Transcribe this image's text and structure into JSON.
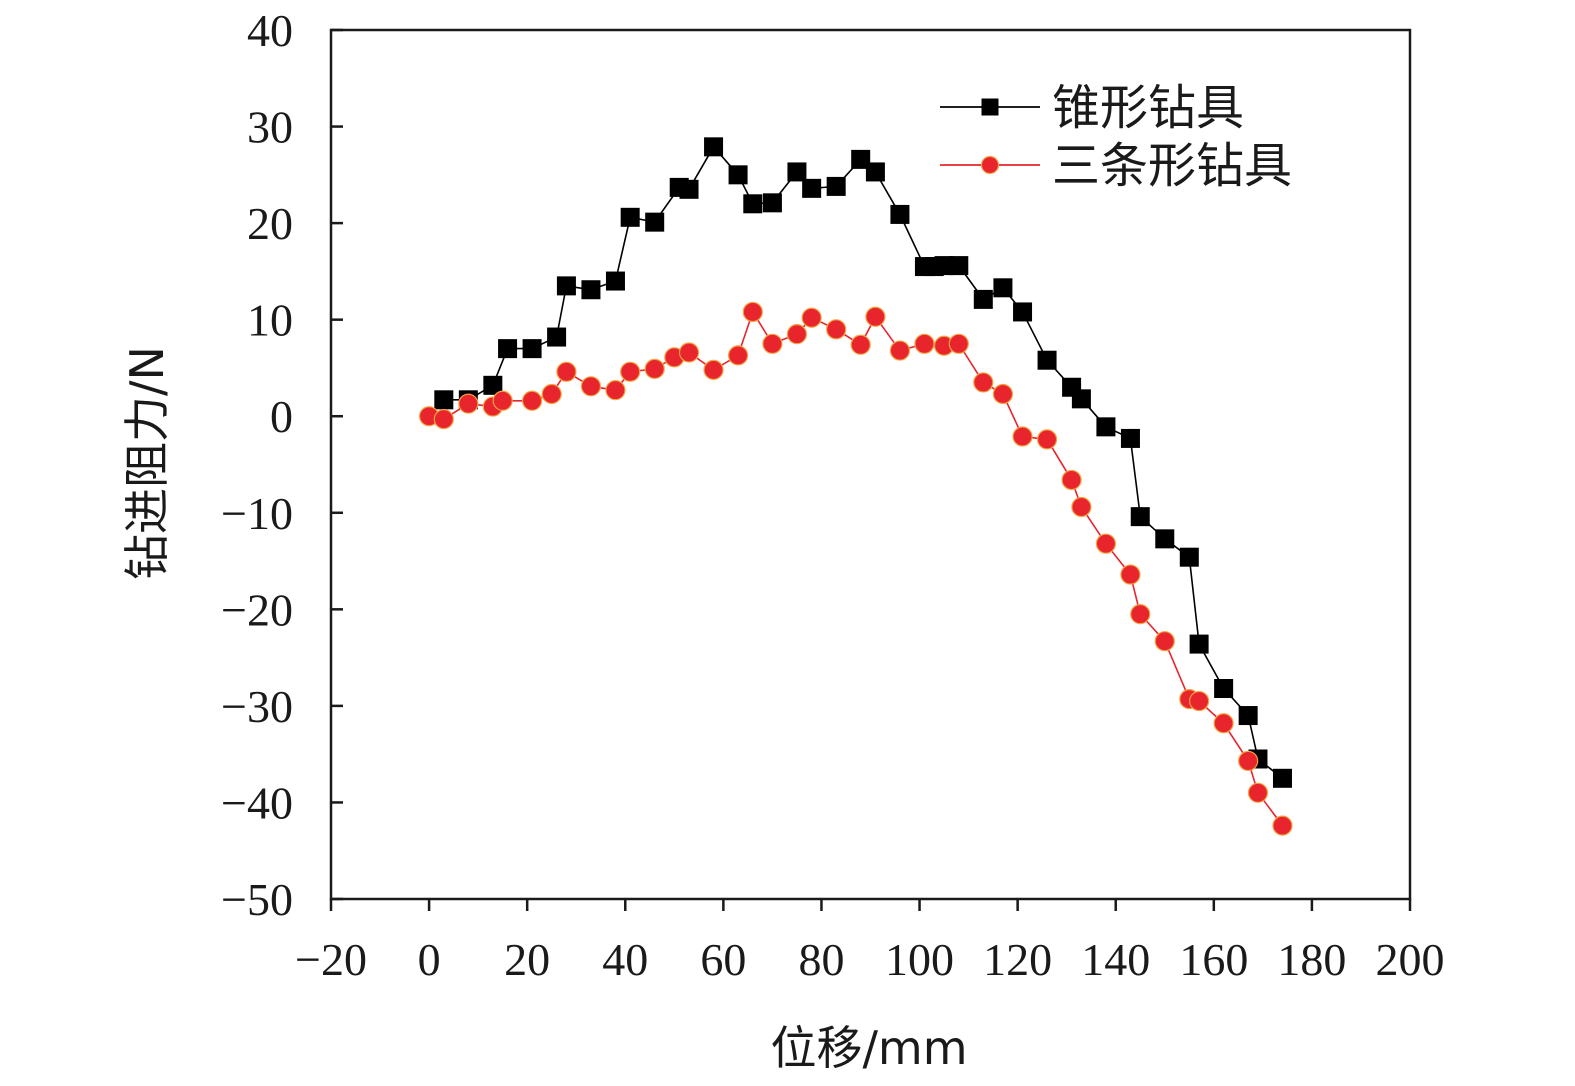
{
  "chart_data": {
    "type": "line",
    "title": "",
    "xlabel": "位移/mm",
    "ylabel": "钻进阻力/N",
    "xlim": [
      -20,
      200
    ],
    "ylim": [
      -50,
      40
    ],
    "xticks": [
      -20,
      0,
      20,
      40,
      60,
      80,
      100,
      120,
      140,
      160,
      180,
      200
    ],
    "yticks": [
      -50,
      -40,
      -30,
      -20,
      -10,
      0,
      10,
      20,
      30,
      40
    ],
    "xtick_labels": [
      "−20",
      "0",
      "20",
      "40",
      "60",
      "80",
      "100",
      "120",
      "140",
      "160",
      "180",
      "200"
    ],
    "ytick_labels": [
      "−50",
      "−40",
      "−30",
      "−20",
      "−10",
      "0",
      "10",
      "20",
      "30",
      "40"
    ],
    "grid": false,
    "legend_position": "top-right",
    "series": [
      {
        "name": "锥形钻具",
        "color": "#000000",
        "marker": "square",
        "x": [
          3,
          8,
          13,
          16,
          21,
          26,
          28,
          33,
          38,
          41,
          46,
          51,
          53,
          58,
          63,
          66,
          70,
          75,
          78,
          83,
          88,
          91,
          96,
          101,
          103,
          105,
          108,
          113,
          117,
          121,
          126,
          131,
          133,
          138,
          143,
          145,
          150,
          155,
          157,
          162,
          167,
          169,
          174
        ],
        "y": [
          1.7,
          1.7,
          3.2,
          7.0,
          7.0,
          8.2,
          13.5,
          13.1,
          14.0,
          20.6,
          20.1,
          23.7,
          23.5,
          27.9,
          25.0,
          22.0,
          22.1,
          25.3,
          23.6,
          23.8,
          26.6,
          25.3,
          20.9,
          15.5,
          15.5,
          15.6,
          15.6,
          12.1,
          13.3,
          10.8,
          5.8,
          3.0,
          1.8,
          -1.1,
          -2.3,
          -10.4,
          -12.7,
          -14.6,
          -23.6,
          -28.2,
          -31.0,
          -35.5,
          -37.5
        ]
      },
      {
        "name": "三条形钻具",
        "color": "#e8242c",
        "marker": "circle",
        "x": [
          0,
          3,
          8,
          13,
          15,
          21,
          25,
          28,
          33,
          38,
          41,
          46,
          50,
          53,
          58,
          63,
          66,
          70,
          75,
          78,
          83,
          88,
          91,
          96,
          101,
          105,
          108,
          113,
          117,
          121,
          126,
          131,
          133,
          138,
          143,
          145,
          150,
          155,
          157,
          162,
          167,
          169,
          174
        ],
        "y": [
          0,
          -0.3,
          1.3,
          1.0,
          1.6,
          1.6,
          2.3,
          4.6,
          3.1,
          2.7,
          4.6,
          4.9,
          6.1,
          6.6,
          4.8,
          6.3,
          10.8,
          7.5,
          8.5,
          10.2,
          9.0,
          7.4,
          10.3,
          6.8,
          7.5,
          7.3,
          7.5,
          3.5,
          2.3,
          -2.1,
          -2.4,
          -6.6,
          -9.4,
          -13.2,
          -16.4,
          -20.5,
          -23.3,
          -29.3,
          -29.5,
          -31.8,
          -35.7,
          -39.0,
          -42.4
        ]
      }
    ]
  }
}
